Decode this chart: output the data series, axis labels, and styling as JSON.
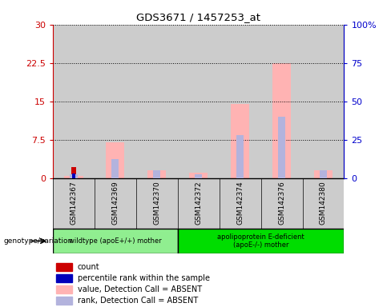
{
  "title": "GDS3671 / 1457253_at",
  "samples": [
    "GSM142367",
    "GSM142369",
    "GSM142370",
    "GSM142372",
    "GSM142374",
    "GSM142376",
    "GSM142380"
  ],
  "left_ylim": [
    0,
    30
  ],
  "right_ylim": [
    0,
    100
  ],
  "left_yticks": [
    0,
    7.5,
    15,
    22.5,
    30
  ],
  "right_yticks": [
    0,
    25,
    50,
    75,
    100
  ],
  "left_yticklabels": [
    "0",
    "7.5",
    "15",
    "22.5",
    "30"
  ],
  "right_yticklabels": [
    "0",
    "25",
    "50",
    "75",
    "100%"
  ],
  "pink_values": [
    0.5,
    7.0,
    1.5,
    1.0,
    14.5,
    22.5,
    1.5
  ],
  "blue_rank_values": [
    2.5,
    12.5,
    5.0,
    2.5,
    28.0,
    40.0,
    5.0
  ],
  "red_count_value": 2.2,
  "blue_count_value": 2.8,
  "red_count_index": 0,
  "group1_count": 3,
  "group2_count": 4,
  "group1_label": "wildtype (apoE+/+) mother",
  "group1_color": "#90ee90",
  "group2_label": "apolipoprotein E-deficient\n(apoE-/-) mother",
  "group2_color": "#00dd00",
  "pink_color": "#ffb3b3",
  "blue_rank_color": "#b3b3dd",
  "red_color": "#cc0000",
  "blue_color": "#0000bb",
  "col_bg_color": "#cccccc",
  "plot_bg_color": "#ffffff",
  "left_tick_color": "#cc0000",
  "right_tick_color": "#0000cc",
  "legend_items": [
    {
      "color": "#cc0000",
      "label": "count"
    },
    {
      "color": "#0000bb",
      "label": "percentile rank within the sample"
    },
    {
      "color": "#ffb3b3",
      "label": "value, Detection Call = ABSENT"
    },
    {
      "color": "#b3b3dd",
      "label": "rank, Detection Call = ABSENT"
    }
  ]
}
